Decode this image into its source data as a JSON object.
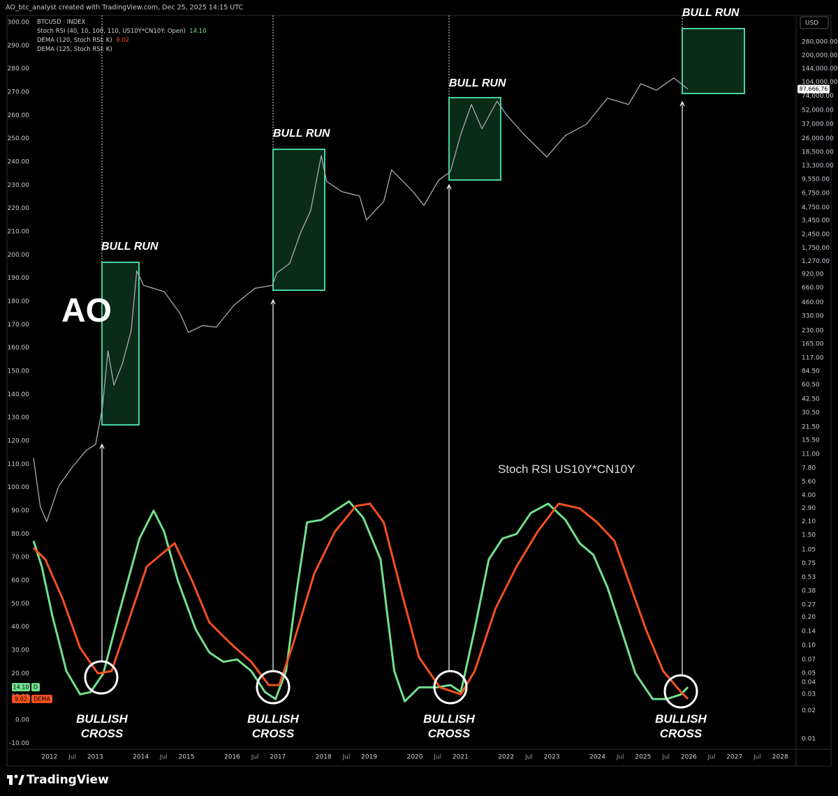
{
  "header": {
    "attribution": "AO_btc_analyst created with TradingView.com, Dec 25, 2025 14:15 UTC",
    "currency": "USD",
    "footer_brand": "TradingView"
  },
  "chart_data": {
    "type": "line",
    "grid": false,
    "xlim": [
      2011.65,
      2028.35
    ],
    "xticks": [
      2012,
      {
        "value": 2012.5,
        "label": "Jul"
      },
      2013,
      2014,
      {
        "value": 2014.5,
        "label": "Jul"
      },
      2015,
      2016,
      {
        "value": 2016.5,
        "label": "Jul"
      },
      2017,
      2018,
      {
        "value": 2018.5,
        "label": "Jul"
      },
      2019,
      2020,
      {
        "value": 2020.5,
        "label": "Jul"
      },
      2021,
      2022,
      {
        "value": 2022.5,
        "label": "Jul"
      },
      2023,
      2024,
      {
        "value": 2024.5,
        "label": "Jul"
      },
      2025,
      {
        "value": 2025.5,
        "label": "Jul"
      },
      2026,
      {
        "value": 2026.5,
        "label": "Jul"
      },
      2027,
      {
        "value": 2027.5,
        "label": "Jul"
      },
      2028
    ],
    "ylim": [
      -12,
      303
    ],
    "yticks": [
      {
        "value": 300,
        "label": "300.00"
      },
      {
        "value": 290,
        "label": "290.00"
      },
      {
        "value": 280,
        "label": "280.00"
      },
      {
        "value": 270,
        "label": "270.00"
      },
      {
        "value": 260,
        "label": "260.00"
      },
      {
        "value": 250,
        "label": "250.00"
      },
      {
        "value": 240,
        "label": "240.00"
      },
      {
        "value": 230,
        "label": "230.00"
      },
      {
        "value": 220,
        "label": "220.00"
      },
      {
        "value": 210,
        "label": "210.00"
      },
      {
        "value": 200,
        "label": "200.00"
      },
      {
        "value": 190,
        "label": "190.00"
      },
      {
        "value": 180,
        "label": "180.00"
      },
      {
        "value": 170,
        "label": "170.00"
      },
      {
        "value": 160,
        "label": "160.00"
      },
      {
        "value": 150,
        "label": "150.00"
      },
      {
        "value": 140,
        "label": "140.00"
      },
      {
        "value": 130,
        "label": "130.00"
      },
      {
        "value": 120,
        "label": "120.00"
      },
      {
        "value": 110,
        "label": "110.00"
      },
      {
        "value": 100,
        "label": "100.00"
      },
      {
        "value": 90,
        "label": "90.00"
      },
      {
        "value": 80,
        "label": "80.00"
      },
      {
        "value": 70,
        "label": "70.00"
      },
      {
        "value": 60,
        "label": "60.00"
      },
      {
        "value": 50,
        "label": "50.00"
      },
      {
        "value": 40,
        "label": "40.00"
      },
      {
        "value": 30,
        "label": "30.00"
      },
      {
        "value": 20,
        "label": "20.00"
      },
      {
        "value": 10,
        "label": "10.00"
      },
      {
        "value": 0,
        "label": "0.00"
      },
      {
        "value": -10,
        "label": "-10.00"
      }
    ],
    "y2log": true,
    "y2lim": [
      0.008,
      537000
    ],
    "y2ticks": [
      {
        "value": 280000,
        "label": "280,000.00"
      },
      {
        "value": 200000,
        "label": "200,000.00"
      },
      {
        "value": 144000,
        "label": "144,000.00"
      },
      {
        "value": 104000,
        "label": "104,000.00"
      },
      {
        "value": 74000,
        "label": "74,000.00"
      },
      {
        "value": 52000,
        "label": "52,000.00"
      },
      {
        "value": 37000,
        "label": "37,000.00"
      },
      {
        "value": 26000,
        "label": "26,000.00"
      },
      {
        "value": 18500,
        "label": "18,500.00"
      },
      {
        "value": 13300,
        "label": "13,300.00"
      },
      {
        "value": 9550,
        "label": "9,550.00"
      },
      {
        "value": 6750,
        "label": "6,750.00"
      },
      {
        "value": 4750,
        "label": "4,750.00"
      },
      {
        "value": 3450,
        "label": "3,450.00"
      },
      {
        "value": 2450,
        "label": "2,450.00"
      },
      {
        "value": 1750,
        "label": "1,750.00"
      },
      {
        "value": 1270,
        "label": "1,270.00"
      },
      {
        "value": 920,
        "label": "920.00"
      },
      {
        "value": 660,
        "label": "660.00"
      },
      {
        "value": 460,
        "label": "460.00"
      },
      {
        "value": 330,
        "label": "330.00"
      },
      {
        "value": 230,
        "label": "230.00"
      },
      {
        "value": 165,
        "label": "165.00"
      },
      {
        "value": 117,
        "label": "117.00"
      },
      {
        "value": 84.5,
        "label": "84.50"
      },
      {
        "value": 60.5,
        "label": "60.50"
      },
      {
        "value": 42.5,
        "label": "42.50"
      },
      {
        "value": 30.5,
        "label": "30.50"
      },
      {
        "value": 21.5,
        "label": "21.50"
      },
      {
        "value": 15.5,
        "label": "15.50"
      },
      {
        "value": 11,
        "label": "11.00"
      },
      {
        "value": 7.8,
        "label": "7.80"
      },
      {
        "value": 5.6,
        "label": "5.60"
      },
      {
        "value": 4,
        "label": "4.00"
      },
      {
        "value": 2.9,
        "label": "2.90"
      },
      {
        "value": 2.1,
        "label": "2.10"
      },
      {
        "value": 1.5,
        "label": "1.50"
      },
      {
        "value": 1.05,
        "label": "1.05"
      },
      {
        "value": 0.75,
        "label": "0.75"
      },
      {
        "value": 0.53,
        "label": "0.53"
      },
      {
        "value": 0.38,
        "label": "0.38"
      },
      {
        "value": 0.27,
        "label": "0.27"
      },
      {
        "value": 0.2,
        "label": "0.20"
      },
      {
        "value": 0.14,
        "label": "0.14"
      },
      {
        "value": 0.1,
        "label": "0.10"
      },
      {
        "value": 0.07,
        "label": "0.07"
      },
      {
        "value": 0.05,
        "label": "0.05"
      },
      {
        "value": 0.04,
        "label": "0.04"
      },
      {
        "value": 0.03,
        "label": "0.03"
      },
      {
        "value": 0.02,
        "label": "0.02"
      },
      {
        "value": 0.01,
        "label": "0.01"
      }
    ],
    "series": [
      {
        "name": "BTCUSD · INDEX",
        "color": "#a9abb3",
        "axis": "y2",
        "last_label": "87,666.76",
        "x": [
          2011.65,
          2011.8,
          2011.94,
          2012.2,
          2012.5,
          2012.8,
          2013.01,
          2013.16,
          2013.28,
          2013.41,
          2013.59,
          2013.79,
          2013.91,
          2014.06,
          2014.51,
          2014.86,
          2015.04,
          2015.35,
          2015.65,
          2016.04,
          2016.5,
          2016.88,
          2016.98,
          2017.26,
          2017.49,
          2017.72,
          2017.95,
          2018.07,
          2018.41,
          2018.79,
          2018.94,
          2019.32,
          2019.49,
          2019.94,
          2020.2,
          2020.52,
          2020.78,
          2021.01,
          2021.24,
          2021.47,
          2021.8,
          2022.0,
          2022.38,
          2022.89,
          2023.3,
          2023.76,
          2024.22,
          2024.68,
          2024.95,
          2025.29,
          2025.67,
          2025.98
        ],
        "values": [
          10,
          3,
          2.1,
          5,
          8,
          12,
          14,
          35,
          140,
          60,
          100,
          230,
          1000,
          700,
          600,
          350,
          220,
          260,
          250,
          430,
          650,
          700,
          950,
          1200,
          2500,
          4400,
          17000,
          9000,
          7000,
          6300,
          3500,
          5500,
          12000,
          7200,
          5000,
          9300,
          11500,
          29000,
          60000,
          33000,
          65000,
          47000,
          29000,
          16500,
          28000,
          37000,
          70000,
          60000,
          100000,
          85000,
          115000,
          87666.76
        ]
      },
      {
        "name": "Stoch RSI (40, 10, 100, 110, US10Y*CN10Y: Open)",
        "color": "#72e08f",
        "last_label": "14.10",
        "tag": "D",
        "x": [
          2011.65,
          2011.83,
          2012.06,
          2012.37,
          2012.67,
          2012.9,
          2013.18,
          2013.51,
          2013.97,
          2014.28,
          2014.51,
          2014.81,
          2015.2,
          2015.5,
          2015.81,
          2016.11,
          2016.42,
          2016.72,
          2016.95,
          2017.18,
          2017.41,
          2017.64,
          2017.95,
          2018.25,
          2018.56,
          2018.87,
          2019.25,
          2019.55,
          2019.78,
          2020.09,
          2020.47,
          2020.78,
          2021.01,
          2021.31,
          2021.62,
          2021.92,
          2022.23,
          2022.54,
          2022.92,
          2023.3,
          2023.61,
          2023.91,
          2024.22,
          2024.52,
          2024.83,
          2025.21,
          2025.52,
          2025.83,
          2025.98
        ],
        "values": [
          77,
          66,
          45,
          21,
          11,
          12,
          20,
          45,
          78,
          90,
          81,
          60,
          39,
          29,
          25,
          26,
          21,
          12,
          9,
          21,
          55,
          85,
          86,
          90,
          94,
          87,
          69,
          21,
          8,
          14,
          14,
          15,
          12,
          39,
          69,
          78,
          80,
          89,
          93,
          86,
          76,
          71,
          57,
          39,
          20,
          9,
          9,
          11,
          14.1
        ]
      },
      {
        "name": "DEMA (120, Stoch RSI: K)",
        "color": "#f4511e",
        "last_label": "9.02",
        "tag": "DEMA",
        "x": [
          2011.65,
          2011.91,
          2012.29,
          2012.67,
          2013.06,
          2013.36,
          2013.67,
          2014.13,
          2014.74,
          2015.12,
          2015.5,
          2015.96,
          2016.42,
          2016.8,
          2017.03,
          2017.34,
          2017.8,
          2018.25,
          2018.71,
          2019.02,
          2019.32,
          2019.71,
          2020.09,
          2020.55,
          2021.01,
          2021.31,
          2021.77,
          2022.23,
          2022.69,
          2023.15,
          2023.61,
          2023.99,
          2024.37,
          2024.68,
          2025.06,
          2025.44,
          2025.83,
          2025.98
        ],
        "values": [
          74,
          69,
          52,
          31,
          20,
          21,
          39,
          66,
          76,
          60,
          42,
          33,
          25,
          15,
          15,
          33,
          63,
          81,
          92,
          93,
          85,
          55,
          27,
          14,
          11,
          21,
          48,
          66,
          81,
          93,
          91,
          85,
          77,
          60,
          39,
          21,
          12,
          9.02
        ]
      }
    ],
    "legend_extra": [
      "DEMA (125, Stoch RSI: K)"
    ],
    "annotations": {
      "logo_text": "AO",
      "bull_run": [
        "BULL RUN",
        "BULL RUN",
        "BULL RUN",
        "BULL RUN"
      ],
      "bullish_cross": [
        "BULLISH CROSS",
        "BULLISH CROSS",
        "BULLISH CROSS",
        "BULLISH CROSS"
      ],
      "indicator_label": "Stoch RSI US10Y*CN10Y"
    }
  }
}
